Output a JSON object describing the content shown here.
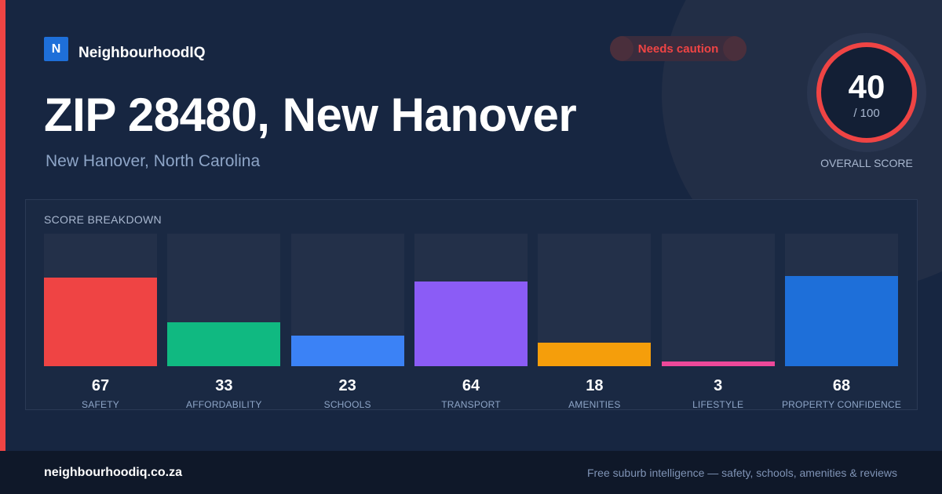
{
  "brand": {
    "logo_letter": "N",
    "name": "NeighbourhoodIQ",
    "logo_color": "#1e6fd9"
  },
  "badge": {
    "label": "Needs caution",
    "color": "#ef4444"
  },
  "header": {
    "title": "ZIP 28480, New Hanover",
    "subtitle": "New Hanover, North Carolina"
  },
  "overall": {
    "value": "40",
    "max_label": "/ 100",
    "label": "OVERALL SCORE",
    "max": 100
  },
  "breakdown": {
    "title": "SCORE BREAKDOWN",
    "max": 100,
    "items": [
      {
        "key": "safety",
        "label": "SAFETY",
        "value": 67,
        "color": "#ef4444"
      },
      {
        "key": "affordability",
        "label": "AFFORDABILITY",
        "value": 33,
        "color": "#10b981"
      },
      {
        "key": "schools",
        "label": "SCHOOLS",
        "value": 23,
        "color": "#3b82f6"
      },
      {
        "key": "transport",
        "label": "TRANSPORT",
        "value": 64,
        "color": "#8b5cf6"
      },
      {
        "key": "amenities",
        "label": "AMENITIES",
        "value": 18,
        "color": "#f59e0b"
      },
      {
        "key": "lifestyle",
        "label": "LIFESTYLE",
        "value": 3,
        "color": "#ec4899"
      },
      {
        "key": "property-confidence",
        "label": "PROPERTY CONFIDENCE",
        "value": 68,
        "color": "#1e6fd9"
      }
    ]
  },
  "footer": {
    "url": "neighbourhoodiq.co.za",
    "tagline": "Free suburb intelligence — safety, schools, amenities & reviews"
  }
}
